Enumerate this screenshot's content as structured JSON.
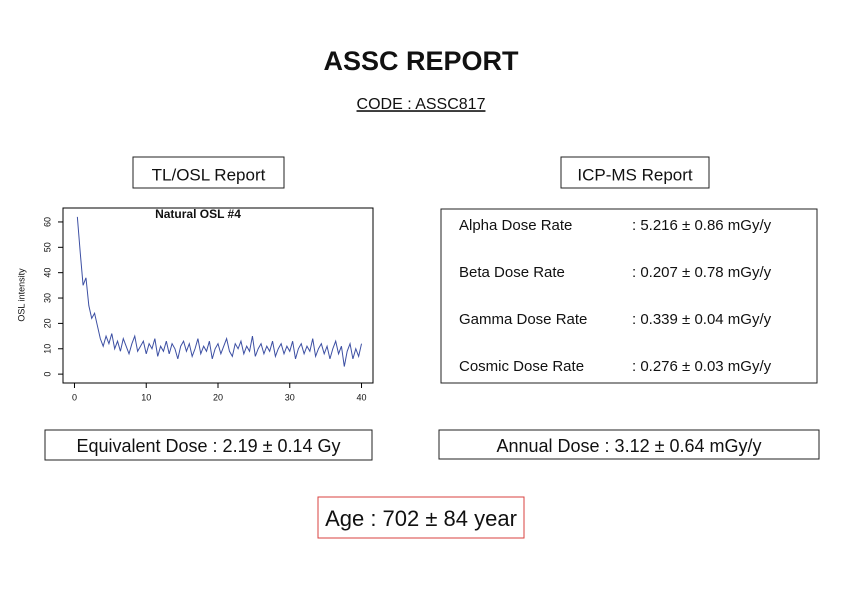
{
  "header": {
    "title": "ASSC REPORT",
    "code": "CODE : ASSC817"
  },
  "tl_osl": {
    "heading": "TL/OSL Report",
    "chart_data": {
      "type": "line",
      "title": "Natural OSL #4",
      "y_label": "OSL intensity",
      "x": [
        0.4,
        0.8,
        1.2,
        1.6,
        2.0,
        2.4,
        2.8,
        3.2,
        3.6,
        4.0,
        4.4,
        4.8,
        5.2,
        5.6,
        6.0,
        6.4,
        6.8,
        7.2,
        7.6,
        8.0,
        8.4,
        8.8,
        9.2,
        9.6,
        10.0,
        10.4,
        10.8,
        11.2,
        11.6,
        12.0,
        12.4,
        12.8,
        13.2,
        13.6,
        14.0,
        14.4,
        14.8,
        15.2,
        15.6,
        16.0,
        16.4,
        16.8,
        17.2,
        17.6,
        18.0,
        18.4,
        18.8,
        19.2,
        19.6,
        20.0,
        20.4,
        20.8,
        21.2,
        21.6,
        22.0,
        22.4,
        22.8,
        23.2,
        23.6,
        24.0,
        24.4,
        24.8,
        25.2,
        25.6,
        26.0,
        26.4,
        26.8,
        27.2,
        27.6,
        28.0,
        28.4,
        28.8,
        29.2,
        29.6,
        30.0,
        30.4,
        30.8,
        31.2,
        31.6,
        32.0,
        32.4,
        32.8,
        33.2,
        33.6,
        34.0,
        34.4,
        34.8,
        35.2,
        35.6,
        36.0,
        36.4,
        36.8,
        37.2,
        37.6,
        38.0,
        38.4,
        38.8,
        39.2,
        39.6,
        40.0
      ],
      "series": [
        {
          "name": "Natural OSL #4",
          "color": "#3c4fa3",
          "values": [
            62,
            48,
            35,
            38,
            27,
            22,
            24,
            19,
            14,
            11,
            15,
            12,
            16,
            10,
            13,
            9,
            14,
            11,
            8,
            12,
            15,
            9,
            11,
            13,
            8,
            12,
            10,
            14,
            7,
            11,
            9,
            13,
            8,
            12,
            10,
            6,
            11,
            13,
            9,
            12,
            7,
            10,
            14,
            8,
            11,
            9,
            13,
            6,
            10,
            12,
            8,
            11,
            14,
            9,
            7,
            12,
            10,
            13,
            8,
            11,
            9,
            15,
            7,
            10,
            12,
            8,
            11,
            9,
            13,
            7,
            10,
            12,
            8,
            11,
            9,
            13,
            6,
            10,
            12,
            8,
            11,
            9,
            14,
            7,
            10,
            12,
            8,
            11,
            6,
            10,
            13,
            8,
            11,
            3,
            9,
            12,
            6,
            10,
            7,
            12
          ]
        }
      ],
      "xlim": [
        -1.6,
        41.6
      ],
      "ylim": [
        -3.5,
        65.5
      ],
      "xticks": [
        0,
        10,
        20,
        30,
        40
      ],
      "yticks": [
        0,
        10,
        20,
        30,
        40,
        50,
        60
      ]
    },
    "result": "Equivalent Dose : 2.19 ± 0.14 Gy"
  },
  "icp_ms": {
    "heading": "ICP-MS Report",
    "rows": [
      [
        "Alpha Dose Rate",
        ": 5.216 ± 0.86 mGy/y"
      ],
      [
        "Beta Dose Rate",
        ": 0.207 ± 0.78 mGy/y"
      ],
      [
        "Gamma Dose Rate",
        ": 0.339 ± 0.04 mGy/y"
      ],
      [
        "Cosmic Dose Rate",
        ": 0.276 ± 0.03 mGy/y"
      ]
    ],
    "result": "Annual Dose : 3.12 ± 0.64 mGy/y"
  },
  "age": "Age : 702 ± 84 year"
}
